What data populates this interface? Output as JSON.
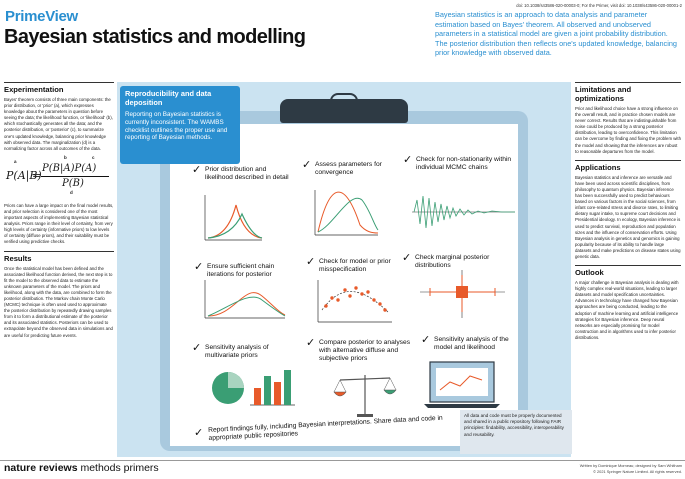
{
  "header": {
    "doi": "doi: 10.1038/s43586-020-00003-0; For the Primer, visit doi: 10.1038/s43586-020-00001-2",
    "brand": "PrimeView",
    "title": "Bayesian statistics and modelling",
    "intro": "Bayesian statistics is an approach to data analysis and parameter estimation based on Bayes' theorem. All observed and unobserved parameters in a statistical model are given a joint probability distribution. The posterior distribution then reflects one's updated knowledge, balancing prior knowledge with observed data."
  },
  "left": {
    "experimentation": {
      "heading": "Experimentation",
      "body1": "Bayes' theorem consists of three main components: the prior distribution, or 'prior' (a), which expresses knowledge about the parameters in question before seeing the data; the likelihood function, or 'likelihood' (b), which stochastically generates all the data; and the posterior distribution, or 'posterior' (c), to summarize one's updated knowledge, balancing prior knowledge with observed data. The marginalization (d) is a normalizing factor across all outcomes of the data.",
      "body2": "Priors can have a large impact on the final model results, and prior selection is considered one of the most important aspects of implementing Bayesian statistical analysis. Priors range in their level of certainty, from very high levels of certainty (informative priors) to low levels of certainty (diffuse priors), and their suitability must be verified using predictive checks."
    },
    "formula": {
      "labels": [
        "a",
        "b",
        "c",
        "d"
      ],
      "lhs": "P(A|B)",
      "eq": "=",
      "numerator": "P(B|A)P(A)",
      "denominator": "P(B)"
    },
    "results": {
      "heading": "Results",
      "body": "Once the statistical model has been defined and the associated likelihood function derived, the next step is to fit the model to the observed data to estimate the unknown parameters of the model. The priors and likelihood, along with the data, are combined to form the posterior distribution. The Markov chain Monte Carlo (MCMC) technique is often used used to approximate the posterior distribution by repeatedly drawing samples from it to form a distributional estimate of the posterior and its associated statistics. Posteriors can be used to extrapolate beyond the observed data in simulations and are useful for predicting future events."
    }
  },
  "center": {
    "repro_heading": "Reproducibility and data deposition",
    "repro_body": "Reporting on Bayesian statistics is currently inconsistent. The WAMBS checklist outlines the proper use and reporting of Bayesian methods.",
    "items": {
      "prior": "Prior distribution and likelihood described in detail",
      "params": "Assess parameters for convergence",
      "nonstat": "Check for non-stationarity within individual MCMC chains",
      "iter": "Ensure sufficient chain iterations for posterior",
      "misspec": "Check for model or prior misspecification",
      "marginal": "Check marginal posterior distributions",
      "sens_multi": "Sensitivity analysis of multivariate priors",
      "compare": "Compare posterior to analyses with alternative diffuse and subjective priors",
      "sens_model": "Sensitivity analysis of the model and likelihood",
      "report": "Report findings fully, including Bayesian interpretations. Share data and code in appropriate public repositories"
    },
    "note": "All data and code must be properly documented and shared in a public repository following FAIR principles: findability, accessibility, interoperability and reusability."
  },
  "right": {
    "limitations": {
      "heading": "Limitations and optimizations",
      "body": "Prior and likelihood choice have a strong influence on the overall result, and in practice chosen models are never correct. Results that are indistinguishable from noise could be produced by a strong posterior distribution, leading to overconfidence. This limitation can be overcome by finding and fixing the problem with the model and showing that the inferences are robust to reasonable departures from the model."
    },
    "applications": {
      "heading": "Applications",
      "body": "Bayesian statistics and inference are versatile and have been used across scientific disciplines, from philosophy to quantum physics. Bayesian inference has been successfully used to predict behaviours based on various factors in the social sciences, from infant core-related stress and divorce rates, to limiting dietary sugar intake, to supreme court decisions and Presidential ideology. In ecology, Bayesian inference is used to predict survival, reproduction and population sizes and the influence of conservation efforts. Using Bayesian analysis in genetics and genomics is gaining popularity because of its ability to handle large datasets and make predictions on disease states using genetic data."
    },
    "outlook": {
      "heading": "Outlook",
      "body": "A major challenge in Bayesian analysis is dealing with highly complex real-world situations, leading to larger datasets and model specification uncertainties. Advances in technology have changed how Bayesian approaches are being conducted, leading to the adoption of machine learning and artificial intelligence strategies for Bayesian inference. Deep neural networks are especially promising for model construction and in algorithms used to infer posterior distributions."
    }
  },
  "footer": {
    "journal_bold": "nature reviews",
    "journal_rest": " methods primers",
    "credit1": "Written by Dominique Morneau; designed by Sam Whitham",
    "credit2": "© 2021 Springer Nature Limited. All rights reserved."
  },
  "colors": {
    "accent_blue": "#2a8fd0",
    "panel_blue": "#cbe3f1",
    "orange": "#e85a2a",
    "green": "#3a9e74",
    "dark": "#2e3a44"
  }
}
